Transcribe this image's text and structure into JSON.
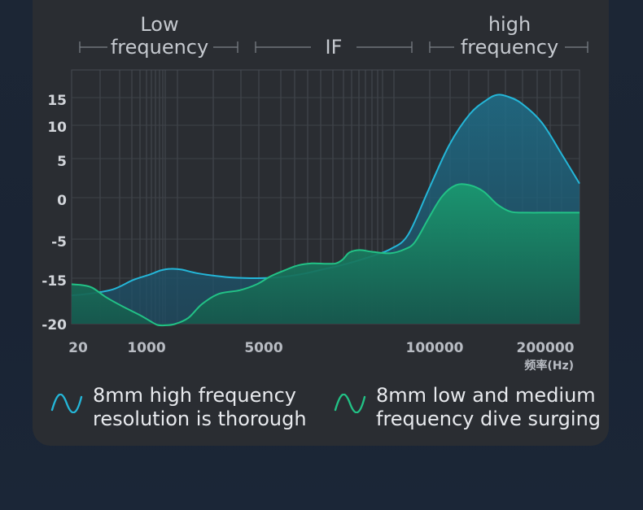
{
  "bands": {
    "low": "Low\nfrequency",
    "mid": "IF",
    "high": "high\nfrequency"
  },
  "legend": [
    {
      "label": "8mm high frequency\nresolution is thorough",
      "color": "#24b6d8",
      "icon": "wave-icon"
    },
    {
      "label": "8mm low and medium\nfrequency dive surging",
      "color": "#22c286",
      "icon": "wave-icon"
    }
  ],
  "chart_data": {
    "type": "area",
    "xlabel": "频率(Hz)",
    "x_ticks": [
      "20",
      "1000",
      "5000",
      "100000",
      "200000"
    ],
    "y_ticks": [
      "15",
      "10",
      "5",
      "0",
      "-5",
      "-15",
      "-20"
    ],
    "grid": true,
    "series": [
      {
        "color": "#24b6d8",
        "points": [
          [
            0,
            -17
          ],
          [
            5,
            -16.8
          ],
          [
            12,
            -16.3
          ],
          [
            18,
            -15.2
          ],
          [
            23,
            -14
          ],
          [
            26,
            -13
          ],
          [
            29,
            -12.6
          ],
          [
            32,
            -12.8
          ],
          [
            37,
            -13.8
          ],
          [
            45,
            -14.7
          ],
          [
            52,
            -15
          ],
          [
            58,
            -14.9
          ],
          [
            63,
            -14.5
          ],
          [
            68,
            -13.8
          ],
          [
            73,
            -12.8
          ],
          [
            78,
            -11.8
          ],
          [
            83,
            -10.6
          ],
          [
            88,
            -9.2
          ],
          [
            93,
            -7.5
          ],
          [
            98,
            -4.5
          ],
          [
            104,
            1
          ],
          [
            110,
            7
          ],
          [
            116,
            12
          ],
          [
            121,
            14.6
          ],
          [
            124,
            15.5
          ],
          [
            127,
            15.2
          ],
          [
            131,
            14
          ],
          [
            137,
            10.5
          ],
          [
            143,
            5.5
          ],
          [
            148,
            1.8
          ]
        ]
      },
      {
        "color": "#22c286",
        "points": [
          [
            0,
            -15.7
          ],
          [
            3,
            -15.8
          ],
          [
            6,
            -16.1
          ],
          [
            10,
            -17.2
          ],
          [
            15,
            -18.3
          ],
          [
            20,
            -19.3
          ],
          [
            23,
            -20
          ],
          [
            25,
            -20.9
          ],
          [
            27,
            -21
          ],
          [
            30,
            -20.7
          ],
          [
            34,
            -19.6
          ],
          [
            38,
            -18
          ],
          [
            43,
            -16.8
          ],
          [
            49,
            -16.4
          ],
          [
            54,
            -15.7
          ],
          [
            58,
            -14.5
          ],
          [
            62,
            -13
          ],
          [
            66,
            -11.7
          ],
          [
            70,
            -11.2
          ],
          [
            74,
            -11.3
          ],
          [
            77,
            -11.2
          ],
          [
            79,
            -10.2
          ],
          [
            81,
            -8.4
          ],
          [
            84,
            -7.8
          ],
          [
            88,
            -8.3
          ],
          [
            93,
            -8.6
          ],
          [
            97,
            -7.6
          ],
          [
            100,
            -5.8
          ],
          [
            104,
            -2.5
          ],
          [
            108,
            0.2
          ],
          [
            112,
            1.6
          ],
          [
            116,
            1.6
          ],
          [
            120,
            0.8
          ],
          [
            124,
            -0.8
          ],
          [
            128,
            -1.7
          ],
          [
            133,
            -1.8
          ],
          [
            138,
            -1.8
          ],
          [
            142,
            -1.8
          ],
          [
            148,
            -1.8
          ]
        ]
      }
    ]
  }
}
